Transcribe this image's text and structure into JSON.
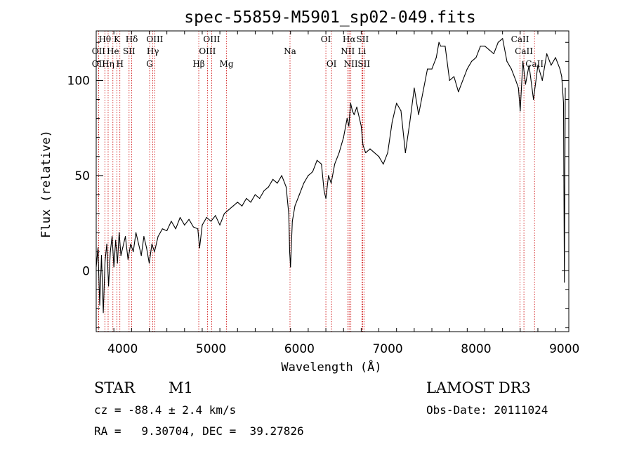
{
  "chart_data": {
    "type": "line",
    "title": "spec-55859-M5901_sp02-049.fits",
    "xlabel": "Wavelength (Å)",
    "ylabel": "Flux (relative)",
    "xlim": [
      3700,
      9050
    ],
    "ylim": [
      -32,
      126
    ],
    "xticks": [
      4000,
      5000,
      6000,
      7000,
      8000,
      9000
    ],
    "yticks": [
      0,
      50,
      100
    ],
    "line_color": "#000000",
    "marker_color": "#cc0000",
    "series": [
      {
        "name": "flux",
        "x": [
          3700,
          3720,
          3740,
          3760,
          3780,
          3800,
          3820,
          3840,
          3860,
          3880,
          3900,
          3920,
          3940,
          3960,
          3980,
          4000,
          4030,
          4060,
          4090,
          4120,
          4150,
          4180,
          4210,
          4240,
          4270,
          4300,
          4330,
          4360,
          4400,
          4450,
          4500,
          4550,
          4600,
          4650,
          4700,
          4750,
          4800,
          4850,
          4870,
          4900,
          4950,
          5000,
          5050,
          5100,
          5150,
          5200,
          5250,
          5300,
          5350,
          5400,
          5450,
          5500,
          5550,
          5600,
          5650,
          5700,
          5750,
          5800,
          5850,
          5880,
          5890,
          5900,
          5920,
          5950,
          6000,
          6050,
          6100,
          6150,
          6200,
          6250,
          6280,
          6300,
          6330,
          6360,
          6400,
          6450,
          6500,
          6540,
          6560,
          6580,
          6600,
          6620,
          6650,
          6700,
          6720,
          6750,
          6800,
          6850,
          6900,
          6950,
          7000,
          7050,
          7100,
          7150,
          7200,
          7250,
          7300,
          7350,
          7400,
          7450,
          7500,
          7550,
          7580,
          7600,
          7650,
          7700,
          7750,
          7800,
          7850,
          7900,
          7950,
          8000,
          8050,
          8100,
          8150,
          8200,
          8250,
          8300,
          8350,
          8400,
          8450,
          8480,
          8500,
          8530,
          8560,
          8600,
          8650,
          8700,
          8750,
          8800,
          8850,
          8900,
          8950,
          8970,
          8990,
          9000,
          9010
        ],
        "values": [
          2,
          12,
          -18,
          8,
          -22,
          5,
          14,
          -8,
          10,
          18,
          2,
          16,
          4,
          20,
          8,
          12,
          18,
          6,
          14,
          10,
          20,
          14,
          8,
          18,
          12,
          4,
          14,
          10,
          18,
          22,
          21,
          26,
          22,
          28,
          24,
          27,
          23,
          22,
          12,
          24,
          28,
          26,
          29,
          24,
          30,
          32,
          34,
          36,
          34,
          38,
          36,
          40,
          38,
          42,
          44,
          48,
          46,
          50,
          44,
          30,
          10,
          2,
          26,
          34,
          40,
          46,
          50,
          52,
          58,
          56,
          42,
          38,
          50,
          46,
          56,
          62,
          70,
          80,
          76,
          88,
          84,
          82,
          86,
          76,
          66,
          62,
          64,
          62,
          60,
          56,
          62,
          78,
          88,
          84,
          62,
          78,
          96,
          82,
          94,
          106,
          106,
          112,
          120,
          118,
          118,
          100,
          102,
          94,
          100,
          106,
          110,
          112,
          118,
          118,
          116,
          114,
          120,
          122,
          110,
          106,
          100,
          96,
          84,
          110,
          98,
          108,
          90,
          108,
          100,
          114,
          108,
          112,
          106,
          102,
          88,
          -6,
          96
        ]
      }
    ],
    "line_markers": [
      {
        "label": "Hθ",
        "wavelength": 3798,
        "row": 1
      },
      {
        "label": "OII",
        "wavelength": 3727,
        "row": 2
      },
      {
        "label": "OII",
        "wavelength": 3727,
        "row": 3
      },
      {
        "label": "Hη",
        "wavelength": 3835,
        "row": 3
      },
      {
        "label": "He",
        "wavelength": 3889,
        "row": 2
      },
      {
        "label": "K",
        "wavelength": 3934,
        "row": 1
      },
      {
        "label": "H",
        "wavelength": 3968,
        "row": 3
      },
      {
        "label": "SII",
        "wavelength": 4072,
        "row": 2
      },
      {
        "label": "Hδ",
        "wavelength": 4102,
        "row": 1
      },
      {
        "label": "G",
        "wavelength": 4305,
        "row": 3
      },
      {
        "label": "Hγ",
        "wavelength": 4341,
        "row": 2
      },
      {
        "label": "OIII",
        "wavelength": 4363,
        "row": 1
      },
      {
        "label": "Hβ",
        "wavelength": 4861,
        "row": 3
      },
      {
        "label": "OIII",
        "wavelength": 4959,
        "row": 2
      },
      {
        "label": "OIII",
        "wavelength": 5007,
        "row": 1
      },
      {
        "label": "Mg",
        "wavelength": 5175,
        "row": 3
      },
      {
        "label": "Na",
        "wavelength": 5894,
        "row": 2
      },
      {
        "label": "OI",
        "wavelength": 6300,
        "row": 1
      },
      {
        "label": "OI",
        "wavelength": 6364,
        "row": 3
      },
      {
        "label": "NII",
        "wavelength": 6548,
        "row": 2
      },
      {
        "label": "Hα",
        "wavelength": 6563,
        "row": 1
      },
      {
        "label": "NII",
        "wavelength": 6583,
        "row": 3
      },
      {
        "label": "Li",
        "wavelength": 6708,
        "row": 2
      },
      {
        "label": "SII",
        "wavelength": 6716,
        "row": 1
      },
      {
        "label": "SII",
        "wavelength": 6731,
        "row": 3
      },
      {
        "label": "CaII",
        "wavelength": 8498,
        "row": 1
      },
      {
        "label": "CaII",
        "wavelength": 8542,
        "row": 2
      },
      {
        "label": "CaII",
        "wavelength": 8662,
        "row": 3
      }
    ]
  },
  "info": {
    "object_type": "STAR",
    "subclass": "M1",
    "survey": "LAMOST DR3",
    "cz_text": "cz = -88.4 ± 2.4 km/s",
    "obs_date_text": "Obs-Date: 20111024",
    "radec_text": "RA =   9.30704, DEC =  39.27826"
  }
}
